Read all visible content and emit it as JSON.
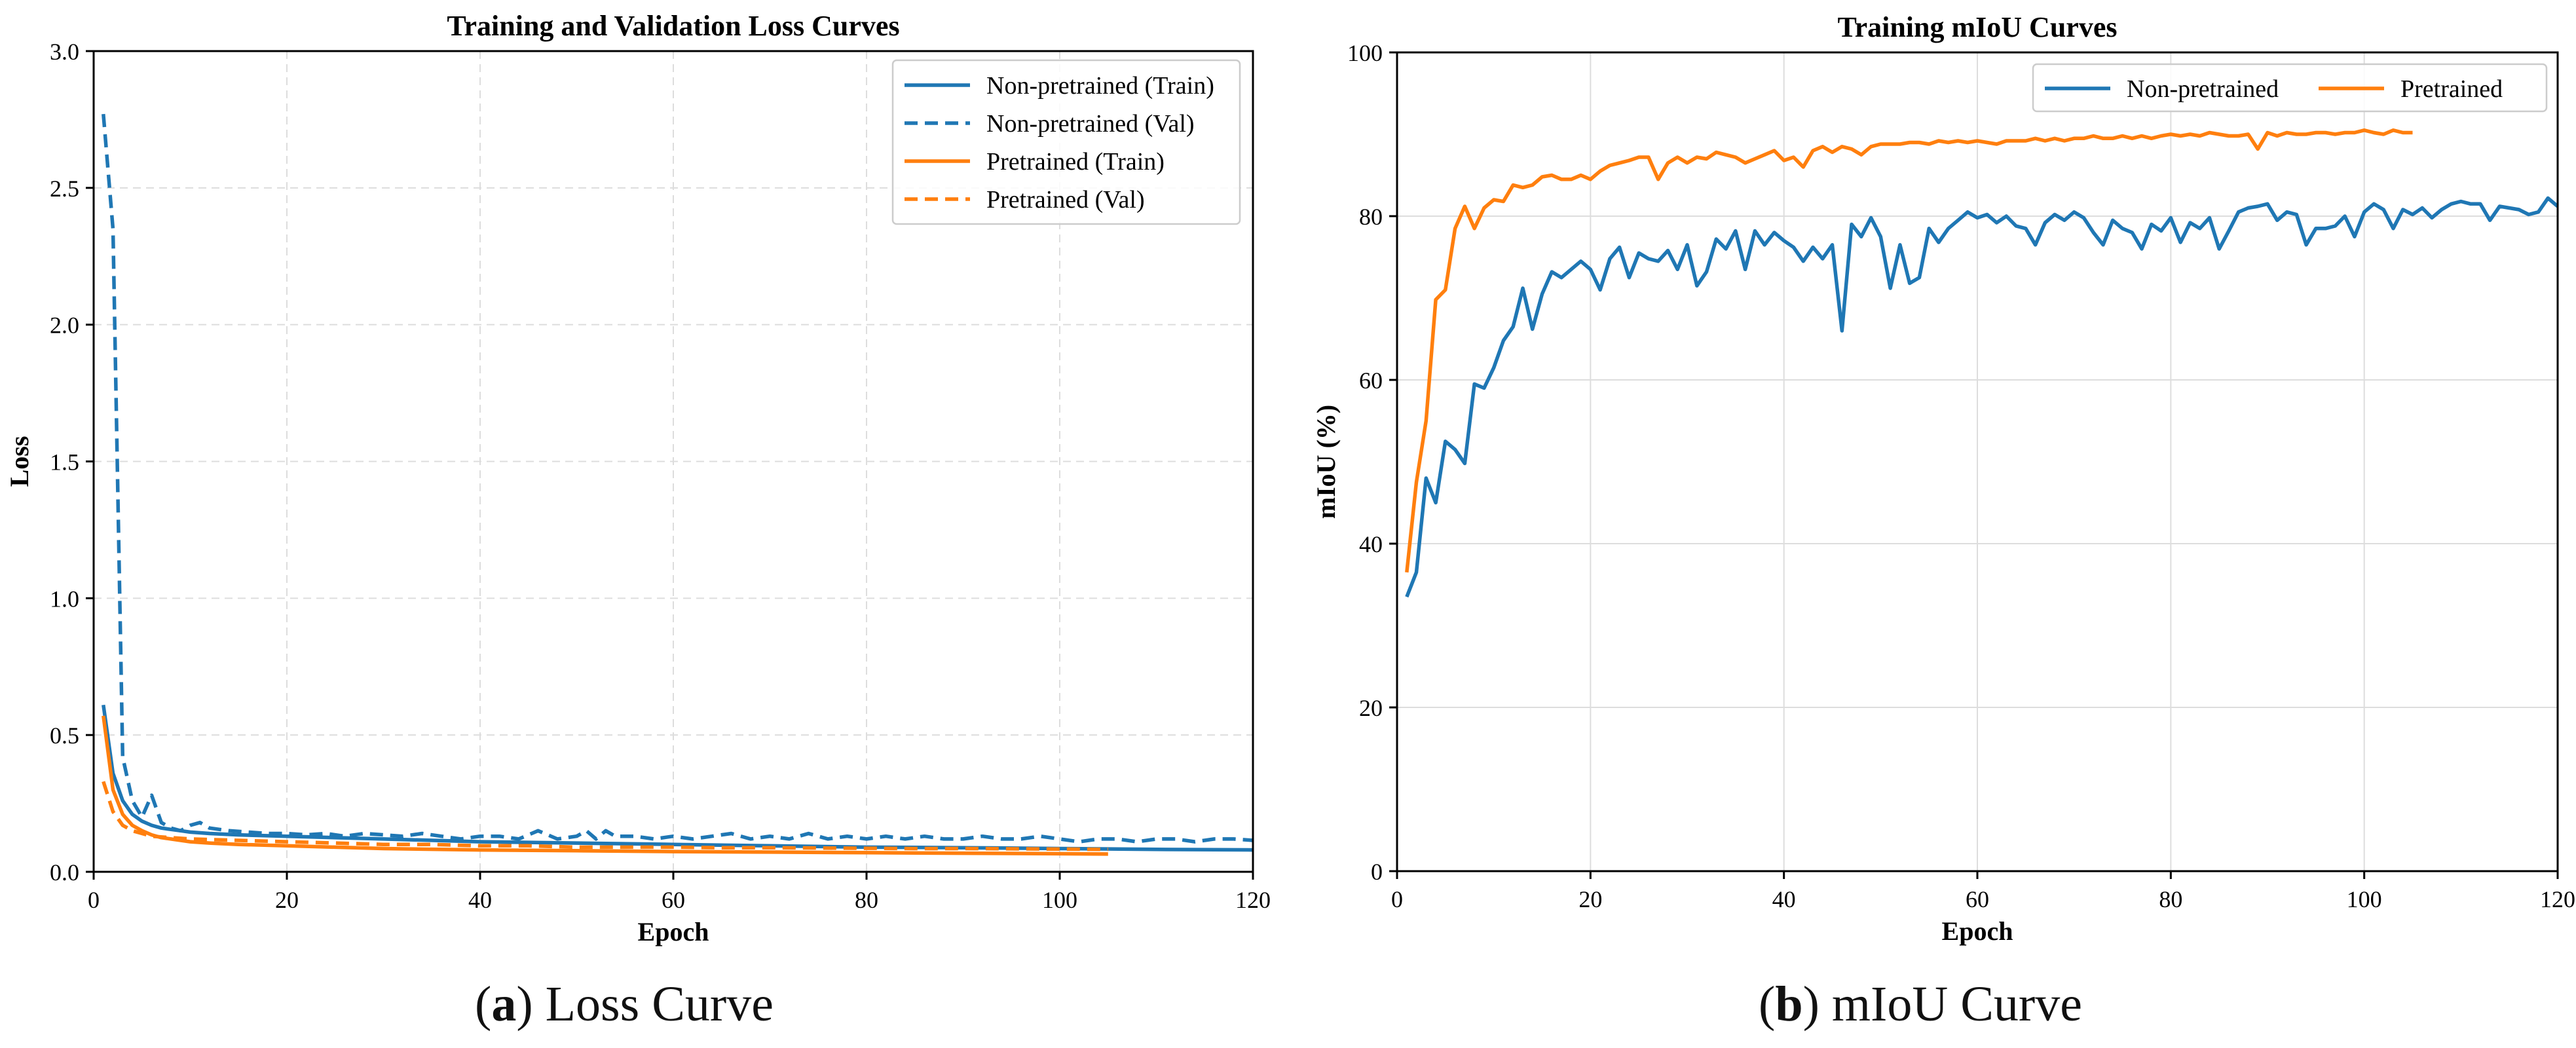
{
  "colors": {
    "blue": "#1f77b4",
    "orange": "#ff7f0e",
    "grid": "#dddddd",
    "text": "#000000"
  },
  "captions": {
    "a": {
      "letter": "a",
      "text": "Loss Curve"
    },
    "b": {
      "letter": "b",
      "text": "mIoU Curve"
    }
  },
  "chart_data": [
    {
      "type": "line",
      "title": "Training and Validation Loss Curves",
      "xlabel": "Epoch",
      "ylabel": "Loss",
      "xlim": [
        0,
        120
      ],
      "ylim": [
        0,
        3.0
      ],
      "xticks": [
        0,
        20,
        40,
        60,
        80,
        100,
        120
      ],
      "yticks": [
        0.0,
        0.5,
        1.0,
        1.5,
        2.0,
        2.5,
        3.0
      ],
      "ytick_labels": [
        "0.0",
        "0.5",
        "1.0",
        "1.5",
        "2.0",
        "2.5",
        "3.0"
      ],
      "grid": true,
      "legend_position": "top-right",
      "series": [
        {
          "name": "Non-pretrained (Train)",
          "color": "#1f77b4",
          "style": "solid",
          "x": [
            1,
            2,
            3,
            4,
            5,
            6,
            7,
            8,
            9,
            10,
            12,
            15,
            20,
            30,
            40,
            50,
            60,
            70,
            80,
            90,
            100,
            110,
            120
          ],
          "values": [
            0.61,
            0.36,
            0.26,
            0.21,
            0.185,
            0.17,
            0.16,
            0.155,
            0.15,
            0.145,
            0.14,
            0.135,
            0.13,
            0.12,
            0.11,
            0.105,
            0.1,
            0.095,
            0.09,
            0.088,
            0.085,
            0.082,
            0.08
          ]
        },
        {
          "name": "Non-pretrained (Val)",
          "color": "#1f77b4",
          "style": "dashed",
          "x": [
            1,
            2,
            3,
            4,
            5,
            6,
            7,
            8,
            9,
            10,
            11,
            12,
            14,
            16,
            18,
            20,
            22,
            24,
            26,
            28,
            30,
            32,
            34,
            36,
            38,
            40,
            42,
            44,
            46,
            48,
            50,
            51,
            52,
            53,
            54,
            56,
            58,
            60,
            62,
            64,
            66,
            68,
            70,
            72,
            74,
            76,
            78,
            80,
            82,
            84,
            86,
            88,
            90,
            92,
            94,
            96,
            98,
            100,
            102,
            104,
            106,
            108,
            110,
            112,
            114,
            116,
            118,
            120
          ],
          "values": [
            2.77,
            2.35,
            0.42,
            0.26,
            0.2,
            0.28,
            0.18,
            0.16,
            0.15,
            0.17,
            0.18,
            0.16,
            0.15,
            0.145,
            0.14,
            0.14,
            0.135,
            0.14,
            0.13,
            0.14,
            0.135,
            0.13,
            0.14,
            0.13,
            0.12,
            0.13,
            0.13,
            0.12,
            0.15,
            0.12,
            0.13,
            0.15,
            0.12,
            0.15,
            0.13,
            0.13,
            0.12,
            0.13,
            0.12,
            0.13,
            0.14,
            0.12,
            0.13,
            0.12,
            0.14,
            0.12,
            0.13,
            0.12,
            0.13,
            0.12,
            0.13,
            0.12,
            0.12,
            0.13,
            0.12,
            0.12,
            0.13,
            0.12,
            0.11,
            0.12,
            0.12,
            0.11,
            0.12,
            0.12,
            0.11,
            0.12,
            0.12,
            0.115
          ]
        },
        {
          "name": "Pretrained (Train)",
          "color": "#ff7f0e",
          "style": "solid",
          "x": [
            1,
            2,
            3,
            4,
            5,
            6,
            7,
            8,
            9,
            10,
            12,
            15,
            20,
            25,
            30,
            40,
            50,
            60,
            70,
            80,
            90,
            100,
            105
          ],
          "values": [
            0.57,
            0.3,
            0.21,
            0.17,
            0.15,
            0.135,
            0.125,
            0.12,
            0.115,
            0.11,
            0.105,
            0.1,
            0.095,
            0.09,
            0.085,
            0.08,
            0.077,
            0.074,
            0.072,
            0.07,
            0.068,
            0.066,
            0.065
          ]
        },
        {
          "name": "Pretrained (Val)",
          "color": "#ff7f0e",
          "style": "dashed",
          "x": [
            1,
            2,
            3,
            4,
            5,
            6,
            8,
            10,
            15,
            20,
            25,
            30,
            35,
            40,
            45,
            50,
            55,
            60,
            65,
            70,
            75,
            80,
            85,
            90,
            95,
            100,
            105
          ],
          "values": [
            0.33,
            0.22,
            0.17,
            0.15,
            0.14,
            0.13,
            0.125,
            0.12,
            0.115,
            0.11,
            0.105,
            0.1,
            0.1,
            0.095,
            0.095,
            0.09,
            0.09,
            0.09,
            0.088,
            0.088,
            0.087,
            0.086,
            0.085,
            0.085,
            0.084,
            0.083,
            0.082
          ]
        }
      ]
    },
    {
      "type": "line",
      "title": "Training mIoU Curves",
      "xlabel": "Epoch",
      "ylabel": "mIoU (%)",
      "xlim": [
        0,
        120
      ],
      "ylim": [
        0,
        100
      ],
      "xticks": [
        0,
        20,
        40,
        60,
        80,
        100,
        120
      ],
      "yticks": [
        0,
        20,
        40,
        60,
        80,
        100
      ],
      "ytick_labels": [
        "0",
        "20",
        "40",
        "60",
        "80",
        "100"
      ],
      "grid": true,
      "legend_position": "top-right",
      "legend_columns": 2,
      "series": [
        {
          "name": "Non-pretrained",
          "color": "#1f77b4",
          "style": "solid",
          "x": [
            1,
            2,
            3,
            4,
            5,
            6,
            7,
            8,
            9,
            10,
            11,
            12,
            13,
            14,
            15,
            16,
            17,
            18,
            19,
            20,
            21,
            22,
            23,
            24,
            25,
            26,
            27,
            28,
            29,
            30,
            31,
            32,
            33,
            34,
            35,
            36,
            37,
            38,
            39,
            40,
            41,
            42,
            43,
            44,
            45,
            46,
            47,
            48,
            49,
            50,
            51,
            52,
            53,
            54,
            55,
            56,
            57,
            58,
            59,
            60,
            61,
            62,
            63,
            64,
            65,
            66,
            67,
            68,
            69,
            70,
            71,
            72,
            73,
            74,
            75,
            76,
            77,
            78,
            79,
            80,
            81,
            82,
            83,
            84,
            85,
            86,
            87,
            88,
            89,
            90,
            91,
            92,
            93,
            94,
            95,
            96,
            97,
            98,
            99,
            100,
            101,
            102,
            103,
            104,
            105,
            106,
            107,
            108,
            109,
            110,
            111,
            112,
            113,
            114,
            115,
            116,
            117,
            118,
            119,
            120
          ],
          "values": [
            33.5,
            36.5,
            48,
            45,
            52.5,
            51.5,
            49.8,
            59.5,
            59,
            61.5,
            64.8,
            66.5,
            71.2,
            66.2,
            70.5,
            73.2,
            72.5,
            73.5,
            74.5,
            73.5,
            71,
            74.8,
            76.2,
            72.5,
            75.5,
            74.8,
            74.5,
            75.8,
            73.5,
            76.5,
            71.5,
            73.2,
            77.2,
            76,
            78.2,
            73.5,
            78.2,
            76.5,
            78,
            77,
            76.2,
            74.5,
            76.2,
            74.8,
            76.5,
            66,
            79,
            77.5,
            79.8,
            77.5,
            71.2,
            76.5,
            71.8,
            72.5,
            78.5,
            76.8,
            78.5,
            79.5,
            80.5,
            79.8,
            80.2,
            79.2,
            80,
            78.8,
            78.5,
            76.5,
            79.2,
            80.2,
            79.5,
            80.5,
            79.8,
            78,
            76.5,
            79.5,
            78.5,
            78,
            76,
            79,
            78.2,
            79.8,
            76.8,
            79.2,
            78.5,
            79.8,
            76,
            78.2,
            80.5,
            81,
            81.2,
            81.5,
            79.5,
            80.5,
            80.2,
            76.5,
            78.5,
            78.5,
            78.8,
            80,
            77.5,
            80.5,
            81.5,
            80.8,
            78.5,
            80.8,
            80.2,
            81,
            79.8,
            80.8,
            81.5,
            81.8,
            81.5,
            81.5,
            79.5,
            81.2,
            81,
            80.8,
            80.2,
            80.5,
            82.2,
            81.2
          ]
        },
        {
          "name": "Pretrained",
          "color": "#ff7f0e",
          "style": "solid",
          "x": [
            1,
            2,
            3,
            4,
            5,
            6,
            7,
            8,
            9,
            10,
            11,
            12,
            13,
            14,
            15,
            16,
            17,
            18,
            19,
            20,
            21,
            22,
            23,
            24,
            25,
            26,
            27,
            28,
            29,
            30,
            31,
            32,
            33,
            34,
            35,
            36,
            37,
            38,
            39,
            40,
            41,
            42,
            43,
            44,
            45,
            46,
            47,
            48,
            49,
            50,
            51,
            52,
            53,
            54,
            55,
            56,
            57,
            58,
            59,
            60,
            61,
            62,
            63,
            64,
            65,
            66,
            67,
            68,
            69,
            70,
            71,
            72,
            73,
            74,
            75,
            76,
            77,
            78,
            79,
            80,
            81,
            82,
            83,
            84,
            85,
            86,
            87,
            88,
            89,
            90,
            91,
            92,
            93,
            94,
            95,
            96,
            97,
            98,
            99,
            100,
            101,
            102,
            103,
            104,
            105
          ],
          "values": [
            36.5,
            47.5,
            55,
            69.8,
            71,
            78.5,
            81.2,
            78.5,
            81,
            82,
            81.8,
            83.8,
            83.5,
            83.8,
            84.8,
            85,
            84.5,
            84.5,
            85,
            84.5,
            85.5,
            86.2,
            86.5,
            86.8,
            87.2,
            87.2,
            84.5,
            86.5,
            87.2,
            86.5,
            87.2,
            87,
            87.8,
            87.5,
            87.2,
            86.5,
            87,
            87.5,
            88,
            86.8,
            87.2,
            86,
            88,
            88.5,
            87.8,
            88.5,
            88.2,
            87.5,
            88.5,
            88.8,
            88.8,
            88.8,
            89,
            89,
            88.8,
            89.2,
            89,
            89.2,
            89,
            89.2,
            89,
            88.8,
            89.2,
            89.2,
            89.2,
            89.5,
            89.2,
            89.5,
            89.2,
            89.5,
            89.5,
            89.8,
            89.5,
            89.5,
            89.8,
            89.5,
            89.8,
            89.5,
            89.8,
            90,
            89.8,
            90,
            89.8,
            90.2,
            90,
            89.8,
            89.8,
            90,
            88.2,
            90.2,
            89.8,
            90.2,
            90,
            90,
            90.2,
            90.2,
            90,
            90.2,
            90.2,
            90.5,
            90.2,
            90,
            90.5,
            90.2,
            90.2
          ]
        }
      ]
    }
  ]
}
